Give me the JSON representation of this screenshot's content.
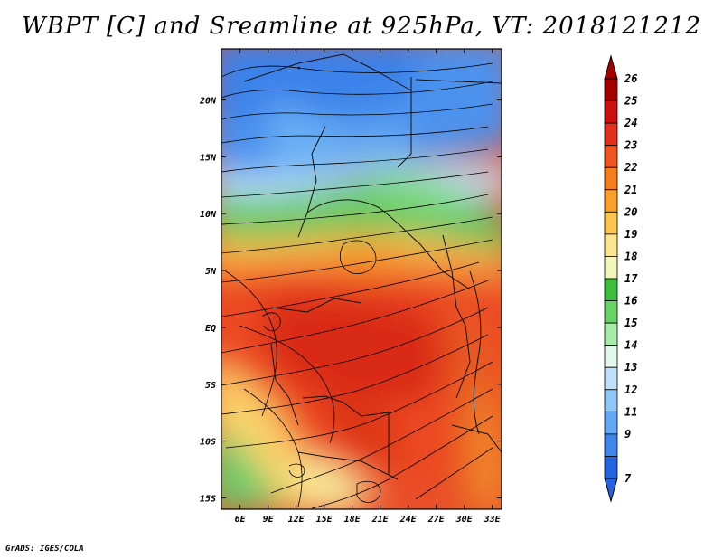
{
  "title": "WBPT [C] and Sreamline at 925hPa, VT: 2018121212",
  "footer": "GrADS: IGES/COLA",
  "map": {
    "lon_ticks": [
      "6E",
      "9E",
      "12E",
      "15E",
      "18E",
      "21E",
      "24E",
      "27E",
      "30E",
      "33E"
    ],
    "lat_ticks": [
      "20N",
      "15N",
      "10N",
      "5N",
      "EQ",
      "5S",
      "10S",
      "15S"
    ],
    "extent": {
      "lon": [
        4,
        34
      ],
      "lat": [
        -16,
        24.5
      ]
    }
  },
  "colorbar": {
    "labels": [
      "26",
      "25",
      "24",
      "23",
      "22",
      "21",
      "20",
      "19",
      "18",
      "17",
      "16",
      "15",
      "14",
      "13",
      "12",
      "11",
      "9",
      "7"
    ],
    "colors": [
      "#a50000",
      "#cc1010",
      "#e3301c",
      "#f25420",
      "#f77c1c",
      "#faa02a",
      "#fbc550",
      "#fbe58e",
      "#f3f6bc",
      "#3dbd3d",
      "#66d366",
      "#a8eaa8",
      "#e3f7ec",
      "#bfe0fa",
      "#8ec6f6",
      "#62a8f2",
      "#3f86ec",
      "#2464e0"
    ],
    "top_arrow_color": "#a50000",
    "bottom_arrow_color": "#2464e0"
  }
}
